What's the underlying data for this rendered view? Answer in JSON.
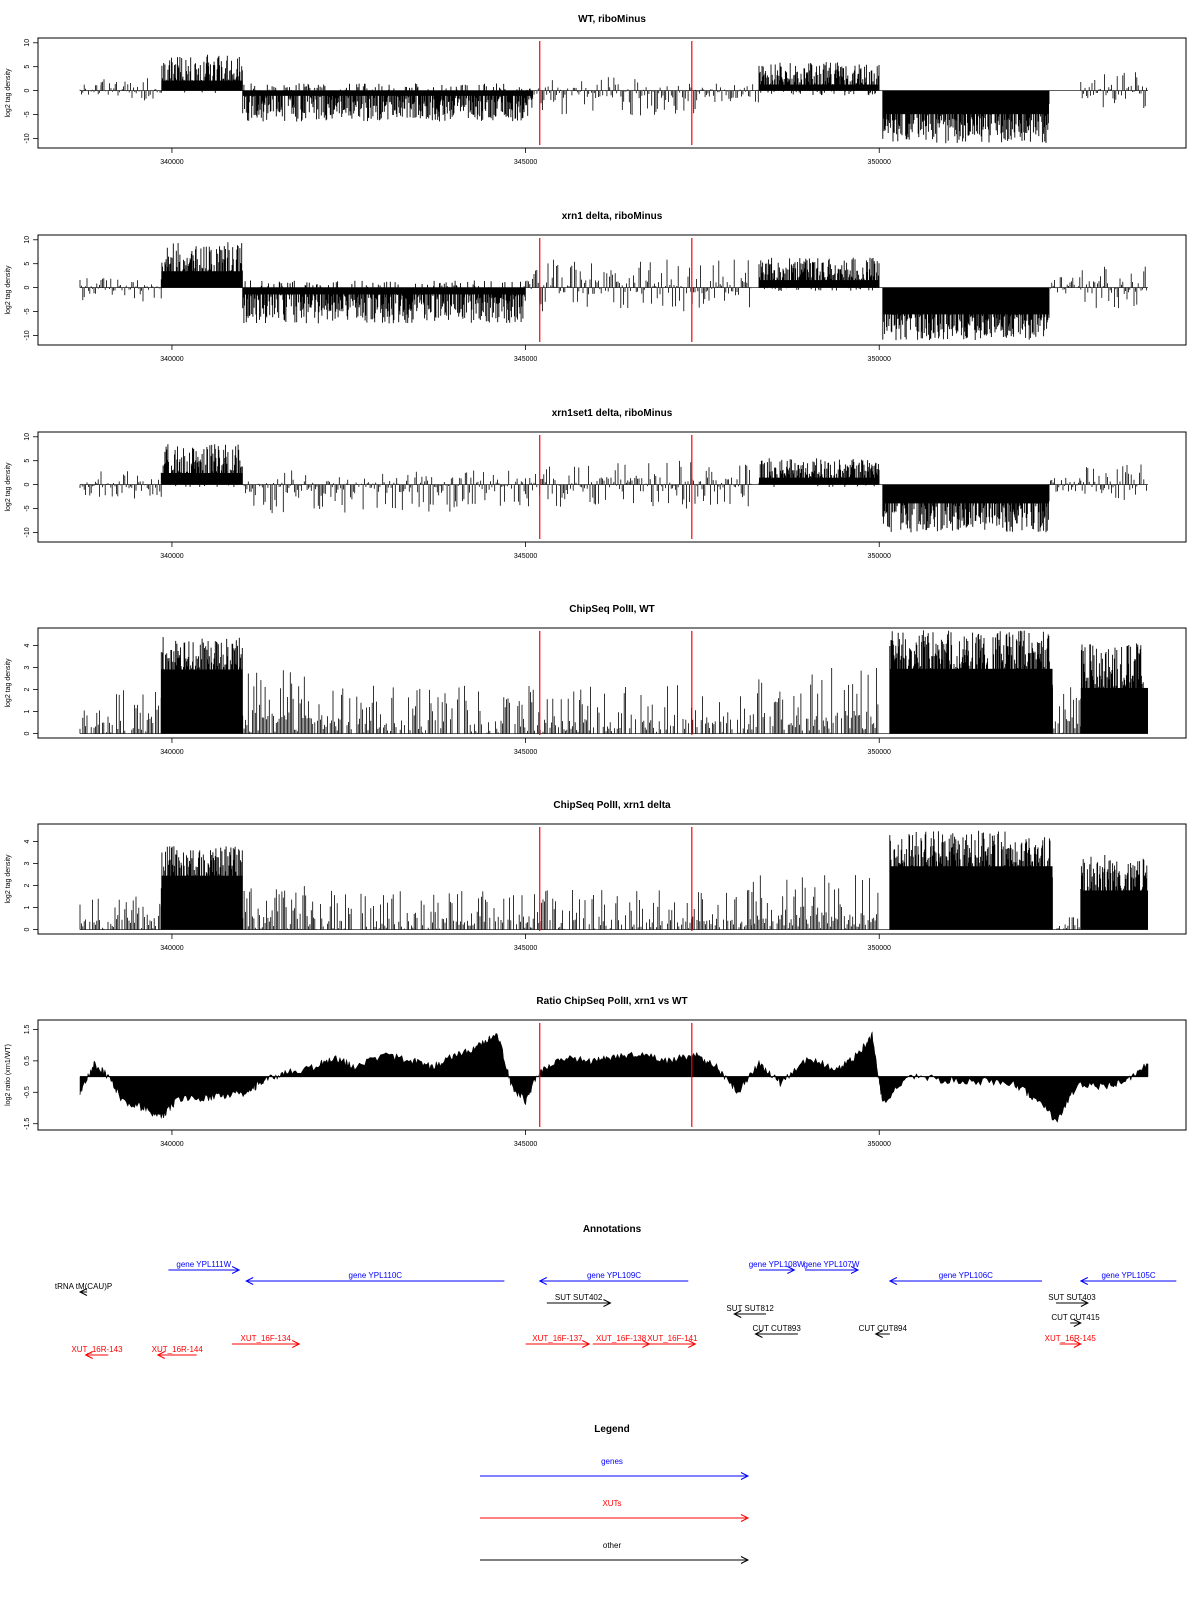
{
  "chart_data": [
    {
      "type": "bar",
      "title": "WT, riboMinus",
      "ylabel": "log2 tag density",
      "x_range": [
        338700,
        353800
      ],
      "ylim": [
        -12,
        11
      ],
      "yticks": [
        "-10",
        "-5",
        "0",
        "5",
        "10"
      ],
      "xticks": [
        "340000",
        "345000",
        "350000"
      ],
      "markers": [
        345200,
        347350
      ],
      "segments": [
        {
          "x": [
            338700,
            339000
          ],
          "mean": 0,
          "amp": 1.5,
          "seed": 1
        },
        {
          "x": [
            339000,
            339850
          ],
          "mean": 0.3,
          "amp": 2.5,
          "seed": 2
        },
        {
          "x": [
            339850,
            341000
          ],
          "mean": 3.5,
          "amp": 4,
          "seed": 3,
          "fill": true
        },
        {
          "x": [
            341000,
            345100
          ],
          "mean": -2.5,
          "amp": 4,
          "seed": 4,
          "fill": true
        },
        {
          "x": [
            345100,
            347400
          ],
          "mean": -1.2,
          "amp": 4,
          "seed": 5
        },
        {
          "x": [
            347400,
            348300
          ],
          "mean": -0.5,
          "amp": 2,
          "seed": 6
        },
        {
          "x": [
            348300,
            350000
          ],
          "mean": 2.5,
          "amp": 3.5,
          "seed": 7,
          "fill": true
        },
        {
          "x": [
            350050,
            352400
          ],
          "mean": -6.5,
          "amp": 4.5,
          "seed": 8,
          "fill": true
        },
        {
          "x": [
            352400,
            352850
          ],
          "mean": 0,
          "amp": 0,
          "seed": 9
        },
        {
          "x": [
            352850,
            353800
          ],
          "mean": 0.2,
          "amp": 4,
          "seed": 10
        }
      ]
    },
    {
      "type": "bar",
      "title": "xrn1 delta, riboMinus",
      "ylabel": "log2 tag density",
      "x_range": [
        338700,
        353800
      ],
      "ylim": [
        -12,
        11
      ],
      "yticks": [
        "-10",
        "-5",
        "0",
        "5",
        "10"
      ],
      "xticks": [
        "340000",
        "345000",
        "350000"
      ],
      "markers": [
        345200,
        347350
      ],
      "segments": [
        {
          "x": [
            338700,
            339850
          ],
          "mean": -0.5,
          "amp": 2.5,
          "seed": 11
        },
        {
          "x": [
            339850,
            341000
          ],
          "mean": 5,
          "amp": 4.5,
          "seed": 12,
          "fill": true
        },
        {
          "x": [
            341000,
            345000
          ],
          "mean": -3,
          "amp": 4.5,
          "seed": 13,
          "fill": true
        },
        {
          "x": [
            345000,
            348200
          ],
          "mean": 0.5,
          "amp": 5.5,
          "seed": 14
        },
        {
          "x": [
            348300,
            350000
          ],
          "mean": 2.8,
          "amp": 3.5,
          "seed": 15,
          "fill": true
        },
        {
          "x": [
            350050,
            352400
          ],
          "mean": -7,
          "amp": 4,
          "seed": 16,
          "fill": true
        },
        {
          "x": [
            352400,
            352850
          ],
          "mean": 0.5,
          "amp": 2,
          "seed": 17
        },
        {
          "x": [
            352850,
            353800
          ],
          "mean": 0,
          "amp": 4.5,
          "seed": 18
        }
      ]
    },
    {
      "type": "bar",
      "title": "xrn1set1 delta, riboMinus",
      "ylabel": "log2 tag density",
      "x_range": [
        338700,
        353800
      ],
      "ylim": [
        -12,
        11
      ],
      "yticks": [
        "-10",
        "-5",
        "0",
        "5",
        "10"
      ],
      "xticks": [
        "340000",
        "345000",
        "350000"
      ],
      "markers": [
        345200,
        347350
      ],
      "segments": [
        {
          "x": [
            338700,
            339850
          ],
          "mean": 0,
          "amp": 3,
          "seed": 21
        },
        {
          "x": [
            339850,
            341000
          ],
          "mean": 4,
          "amp": 4.5,
          "seed": 22,
          "fill": true
        },
        {
          "x": [
            341000,
            345000
          ],
          "mean": -1.5,
          "amp": 4.5,
          "seed": 23
        },
        {
          "x": [
            345000,
            348200
          ],
          "mean": 0,
          "amp": 5,
          "seed": 24
        },
        {
          "x": [
            348300,
            350000
          ],
          "mean": 2.5,
          "amp": 3,
          "seed": 25,
          "fill": true
        },
        {
          "x": [
            350050,
            352400
          ],
          "mean": -5.5,
          "amp": 4.5,
          "seed": 26,
          "fill": true
        },
        {
          "x": [
            352400,
            352850
          ],
          "mean": 0,
          "amp": 1.5,
          "seed": 27
        },
        {
          "x": [
            352850,
            353800
          ],
          "mean": 0,
          "amp": 4.5,
          "seed": 28
        }
      ]
    },
    {
      "type": "bar",
      "title": "ChipSeq PolII, WT",
      "ylabel": "log2 tag density",
      "x_range": [
        338700,
        353800
      ],
      "ylim": [
        -0.2,
        4.8
      ],
      "yticks": [
        "0",
        "1",
        "2",
        "3",
        "4"
      ],
      "xticks": [
        "340000",
        "345000",
        "350000"
      ],
      "markers": [
        345200,
        347350
      ],
      "segments": [
        {
          "x": [
            338700,
            339850
          ],
          "mean": 0.8,
          "amp": 1.2,
          "seed": 31,
          "min": 0
        },
        {
          "x": [
            339850,
            341000
          ],
          "mean": 3.3,
          "amp": 1.1,
          "seed": 32,
          "min": 0,
          "fill": true
        },
        {
          "x": [
            341000,
            342000
          ],
          "mean": 1.5,
          "amp": 1.5,
          "seed": 33,
          "min": 0
        },
        {
          "x": [
            342000,
            348200
          ],
          "mean": 0.7,
          "amp": 1.5,
          "seed": 34,
          "min": 0
        },
        {
          "x": [
            348200,
            350000
          ],
          "mean": 1.2,
          "amp": 1.8,
          "seed": 35,
          "min": 0
        },
        {
          "x": [
            350150,
            352450
          ],
          "mean": 3.4,
          "amp": 1.3,
          "seed": 36,
          "min": 0,
          "fill": true
        },
        {
          "x": [
            352450,
            352850
          ],
          "mean": 1.0,
          "amp": 1.2,
          "seed": 37,
          "min": 0
        },
        {
          "x": [
            352850,
            353800
          ],
          "mean": 2.6,
          "amp": 1.5,
          "seed": 38,
          "min": 0,
          "fill": true
        }
      ]
    },
    {
      "type": "bar",
      "title": "ChipSeq PolII, xrn1 delta",
      "ylabel": "log2 tag density",
      "x_range": [
        338700,
        353800
      ],
      "ylim": [
        -0.2,
        4.8
      ],
      "yticks": [
        "0",
        "1",
        "2",
        "3",
        "4"
      ],
      "xticks": [
        "340000",
        "345000",
        "350000"
      ],
      "markers": [
        345200,
        347350
      ],
      "segments": [
        {
          "x": [
            338700,
            339850
          ],
          "mean": 0.5,
          "amp": 1,
          "seed": 41,
          "min": 0
        },
        {
          "x": [
            339850,
            341000
          ],
          "mean": 2.8,
          "amp": 1,
          "seed": 42,
          "min": 0,
          "fill": true
        },
        {
          "x": [
            341000,
            342000
          ],
          "mean": 1.0,
          "amp": 1,
          "seed": 43,
          "min": 0
        },
        {
          "x": [
            342000,
            348200
          ],
          "mean": 0.6,
          "amp": 1.2,
          "seed": 44,
          "min": 0
        },
        {
          "x": [
            348200,
            350000
          ],
          "mean": 1.2,
          "amp": 1.3,
          "seed": 45,
          "min": 0
        },
        {
          "x": [
            350150,
            352450
          ],
          "mean": 3.3,
          "amp": 1.2,
          "seed": 46,
          "min": 0,
          "fill": true
        },
        {
          "x": [
            352450,
            352850
          ],
          "mean": 0.3,
          "amp": 0.5,
          "seed": 47,
          "min": 0
        },
        {
          "x": [
            352850,
            353800
          ],
          "mean": 2.2,
          "amp": 1.2,
          "seed": 48,
          "min": 0,
          "fill": true
        }
      ]
    },
    {
      "type": "area",
      "title": "Ratio ChipSeq PolII, xrn1 vs WT",
      "ylabel": "log2 ratio (xrn1/WT)",
      "x_range": [
        338700,
        353800
      ],
      "ylim": [
        -1.7,
        1.8
      ],
      "yticks": [
        "-1.5",
        "-0.5",
        "0.5",
        "1.5"
      ],
      "xticks": [
        "340000",
        "345000",
        "350000"
      ],
      "markers": [
        345200,
        347350
      ],
      "profile": [
        [
          338700,
          -0.5
        ],
        [
          338900,
          0.4
        ],
        [
          339100,
          0.0
        ],
        [
          339300,
          -0.8
        ],
        [
          339600,
          -1.0
        ],
        [
          339850,
          -1.3
        ],
        [
          340100,
          -0.7
        ],
        [
          340500,
          -0.7
        ],
        [
          340800,
          -0.6
        ],
        [
          341100,
          -0.5
        ],
        [
          341300,
          -0.1
        ],
        [
          341600,
          0.1
        ],
        [
          342000,
          0.3
        ],
        [
          342300,
          0.6
        ],
        [
          342600,
          0.3
        ],
        [
          343000,
          0.7
        ],
        [
          343400,
          0.5
        ],
        [
          343700,
          0.3
        ],
        [
          344000,
          0.7
        ],
        [
          344300,
          0.9
        ],
        [
          344600,
          1.4
        ],
        [
          344800,
          -0.3
        ],
        [
          345000,
          -0.8
        ],
        [
          345200,
          0.2
        ],
        [
          345500,
          0.6
        ],
        [
          345900,
          0.5
        ],
        [
          346200,
          0.6
        ],
        [
          346600,
          0.7
        ],
        [
          347000,
          0.5
        ],
        [
          347400,
          0.7
        ],
        [
          347700,
          0.3
        ],
        [
          348000,
          -0.5
        ],
        [
          348300,
          0.4
        ],
        [
          348600,
          -0.2
        ],
        [
          349000,
          0.6
        ],
        [
          349400,
          0.2
        ],
        [
          349700,
          0.7
        ],
        [
          349900,
          1.3
        ],
        [
          350050,
          -0.9
        ],
        [
          350400,
          0.0
        ],
        [
          350900,
          -0.1
        ],
        [
          351400,
          -0.15
        ],
        [
          351900,
          -0.2
        ],
        [
          352200,
          -0.7
        ],
        [
          352500,
          -1.4
        ],
        [
          352800,
          -0.3
        ],
        [
          353200,
          -0.3
        ],
        [
          353500,
          -0.1
        ],
        [
          353800,
          0.4
        ]
      ]
    }
  ],
  "annotations": {
    "title": "Annotations",
    "x_range": [
      338700,
      353800
    ],
    "items": [
      {
        "label": "gene YPL111W",
        "x1": 339950,
        "x2": 340950,
        "row": 0,
        "dir": "right",
        "color": "#0000ff"
      },
      {
        "label": "gene YPL110C",
        "x1": 341050,
        "x2": 344700,
        "row": 1,
        "dir": "left",
        "color": "#0000ff"
      },
      {
        "label": "gene YPL109C",
        "x1": 345200,
        "x2": 347300,
        "row": 1,
        "dir": "left",
        "color": "#0000ff"
      },
      {
        "label": "gene YPL108W",
        "x1": 348300,
        "x2": 348800,
        "row": 0,
        "dir": "right",
        "color": "#0000ff"
      },
      {
        "label": "gene YPL107W",
        "x1": 348950,
        "x2": 349700,
        "row": 0,
        "dir": "right",
        "color": "#0000ff"
      },
      {
        "label": "gene YPL106C",
        "x1": 350150,
        "x2": 352300,
        "row": 1,
        "dir": "left",
        "color": "#0000ff"
      },
      {
        "label": "gene YPL105C",
        "x1": 352850,
        "x2": 354200,
        "row": 1,
        "dir": "left",
        "color": "#0000ff"
      },
      {
        "label": "tRNA tM(CAU)P",
        "x1": 338700,
        "x2": 338800,
        "row": 2,
        "dir": "left",
        "color": "#000000"
      },
      {
        "label": "SUT SUT402",
        "x1": 345300,
        "x2": 346200,
        "row": 3,
        "dir": "right",
        "color": "#000000"
      },
      {
        "label": "SUT SUT812",
        "x1": 347950,
        "x2": 348400,
        "row": 4,
        "dir": "left",
        "color": "#000000"
      },
      {
        "label": "SUT SUT403",
        "x1": 352500,
        "x2": 352950,
        "row": 3,
        "dir": "right",
        "color": "#000000"
      },
      {
        "label": "CUT CUT415",
        "x1": 352700,
        "x2": 352850,
        "row": 5,
        "dir": "right",
        "color": "#000000"
      },
      {
        "label": "CUT CUT893",
        "x1": 348250,
        "x2": 348850,
        "row": 6,
        "dir": "left",
        "color": "#000000"
      },
      {
        "label": "CUT CUT894",
        "x1": 349950,
        "x2": 350150,
        "row": 6,
        "dir": "left",
        "color": "#000000"
      },
      {
        "label": "XUT_16R-143",
        "x1": 338780,
        "x2": 339100,
        "row": 7,
        "dir": "left",
        "color": "#ff0000"
      },
      {
        "label": "XUT_16R-144",
        "x1": 339800,
        "x2": 340350,
        "row": 7,
        "dir": "left",
        "color": "#ff0000"
      },
      {
        "label": "XUT_16F-134",
        "x1": 340850,
        "x2": 341800,
        "row": 8,
        "dir": "right",
        "color": "#ff0000"
      },
      {
        "label": "XUT_16F-137",
        "x1": 345000,
        "x2": 345900,
        "row": 8,
        "dir": "right",
        "color": "#ff0000"
      },
      {
        "label": "XUT_16F-138",
        "x1": 345950,
        "x2": 346750,
        "row": 8,
        "dir": "right",
        "color": "#ff0000"
      },
      {
        "label": "XUT_16F-141",
        "x1": 346750,
        "x2": 347400,
        "row": 8,
        "dir": "right",
        "color": "#ff0000"
      },
      {
        "label": "XUT_16R-145",
        "x1": 352550,
        "x2": 352850,
        "row": 8,
        "dir": "right",
        "color": "#ff0000"
      }
    ]
  },
  "legend": {
    "title": "Legend",
    "entries": [
      {
        "label": "genes",
        "color": "#0000ff"
      },
      {
        "label": "XUTs",
        "color": "#ff0000"
      },
      {
        "label": "other",
        "color": "#000000"
      }
    ]
  }
}
